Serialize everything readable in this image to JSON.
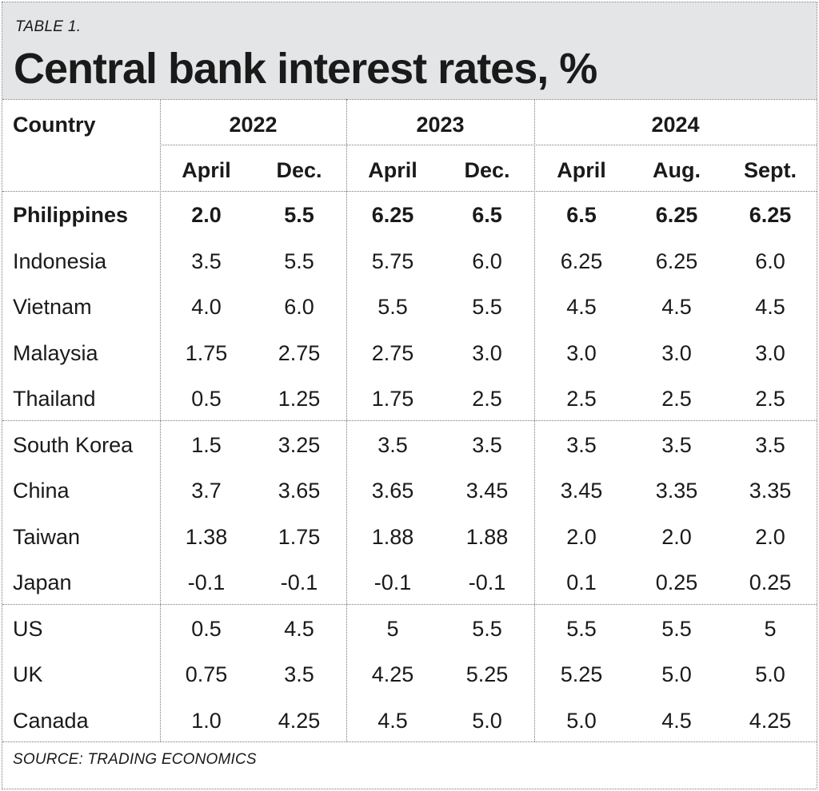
{
  "header": {
    "table_label": "TABLE 1.",
    "title": "Central bank interest rates, %"
  },
  "chart_data": {
    "type": "table",
    "title": "Central bank interest rates, %",
    "row_header_label": "Country",
    "year_groups": [
      {
        "year": "2022",
        "months": [
          "April",
          "Dec."
        ]
      },
      {
        "year": "2023",
        "months": [
          "April",
          "Dec."
        ]
      },
      {
        "year": "2024",
        "months": [
          "April",
          "Aug.",
          "Sept."
        ]
      }
    ],
    "rows": [
      {
        "country": "Philippines",
        "bold": true,
        "values": [
          "2.0",
          "5.5",
          "6.25",
          "6.5",
          "6.5",
          "6.25",
          "6.25"
        ]
      },
      {
        "country": "Indonesia",
        "values": [
          "3.5",
          "5.5",
          "5.75",
          "6.0",
          "6.25",
          "6.25",
          "6.0"
        ]
      },
      {
        "country": "Vietnam",
        "values": [
          "4.0",
          "6.0",
          "5.5",
          "5.5",
          "4.5",
          "4.5",
          "4.5"
        ]
      },
      {
        "country": "Malaysia",
        "values": [
          "1.75",
          "2.75",
          "2.75",
          "3.0",
          "3.0",
          "3.0",
          "3.0"
        ]
      },
      {
        "country": "Thailand",
        "values": [
          "0.5",
          "1.25",
          "1.75",
          "2.5",
          "2.5",
          "2.5",
          "2.5"
        ]
      },
      {
        "country": "South Korea",
        "values": [
          "1.5",
          "3.25",
          "3.5",
          "3.5",
          "3.5",
          "3.5",
          "3.5"
        ]
      },
      {
        "country": "China",
        "values": [
          "3.7",
          "3.65",
          "3.65",
          "3.45",
          "3.45",
          "3.35",
          "3.35"
        ]
      },
      {
        "country": "Taiwan",
        "values": [
          "1.38",
          "1.75",
          "1.88",
          "1.88",
          "2.0",
          "2.0",
          "2.0"
        ]
      },
      {
        "country": "Japan",
        "values": [
          "-0.1",
          "-0.1",
          "-0.1",
          "-0.1",
          "0.1",
          "0.25",
          "0.25"
        ]
      },
      {
        "country": "US",
        "values": [
          "0.5",
          "4.5",
          "5",
          "5.5",
          "5.5",
          "5.5",
          "5"
        ]
      },
      {
        "country": "UK",
        "values": [
          "0.75",
          "3.5",
          "4.25",
          "5.25",
          "5.25",
          "5.0",
          "5.0"
        ]
      },
      {
        "country": "Canada",
        "values": [
          "1.0",
          "4.25",
          "4.5",
          "5.0",
          "5.0",
          "4.5",
          "4.25"
        ]
      }
    ],
    "source": "SOURCE: TRADING ECONOMICS"
  }
}
